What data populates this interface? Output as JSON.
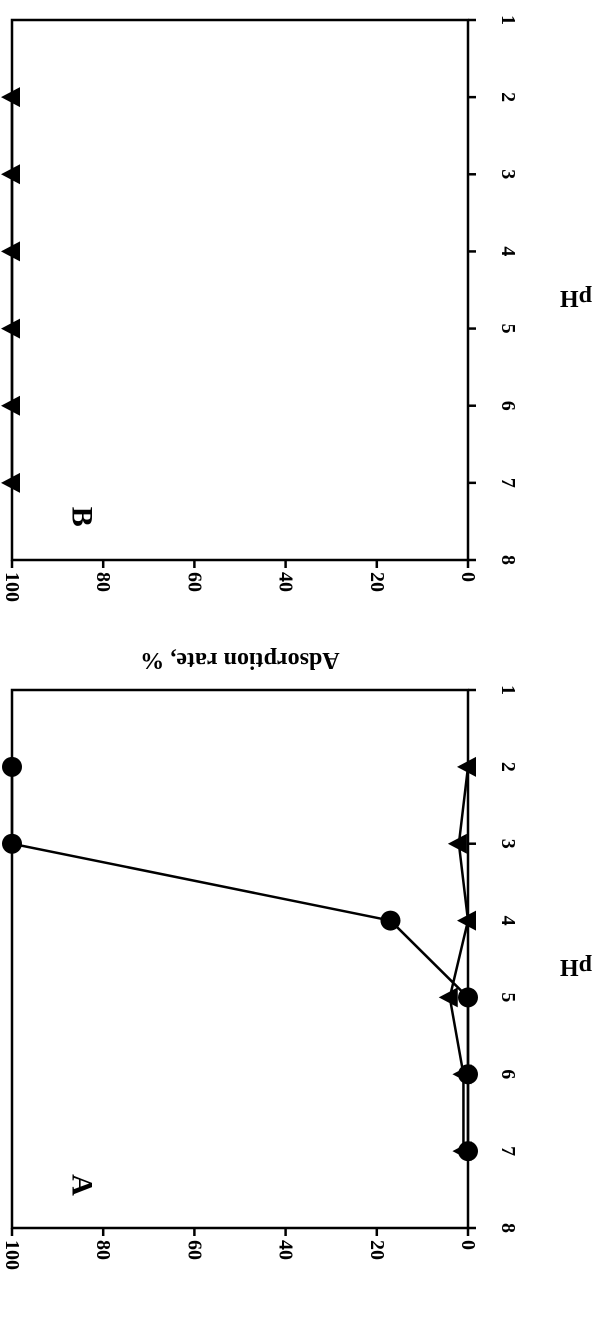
{
  "chart_data": [
    {
      "type": "line",
      "panel_label": "A",
      "xlabel": "pH",
      "ylabel": "Adsorption rate, %",
      "xlim": [
        1,
        8
      ],
      "ylim": [
        0,
        100
      ],
      "x_ticks": [
        "1",
        "2",
        "3",
        "4",
        "5",
        "6",
        "7",
        "8"
      ],
      "y_ticks": [
        "0",
        "20",
        "40",
        "60",
        "80",
        "100"
      ],
      "grid": false,
      "series": [
        {
          "marker": "circle",
          "x": [
            2,
            3,
            4,
            5,
            6,
            7
          ],
          "y": [
            100,
            100,
            17,
            0,
            0,
            0
          ]
        },
        {
          "marker": "triangle",
          "x": [
            2,
            3,
            4,
            5,
            6,
            7
          ],
          "y": [
            0,
            2,
            0,
            4,
            1,
            1
          ]
        }
      ]
    },
    {
      "type": "line",
      "panel_label": "B",
      "xlabel": "pH",
      "ylabel": "Adsorption rate, %",
      "xlim": [
        1,
        8
      ],
      "ylim": [
        0,
        100
      ],
      "x_ticks": [
        "1",
        "2",
        "3",
        "4",
        "5",
        "6",
        "7",
        "8"
      ],
      "y_ticks": [
        "0",
        "20",
        "40",
        "60",
        "80",
        "100"
      ],
      "grid": false,
      "series": [
        {
          "marker": "triangle",
          "x": [
            2,
            3,
            4,
            5,
            6,
            7
          ],
          "y": [
            100,
            100,
            100,
            100,
            100,
            100
          ]
        }
      ]
    }
  ]
}
